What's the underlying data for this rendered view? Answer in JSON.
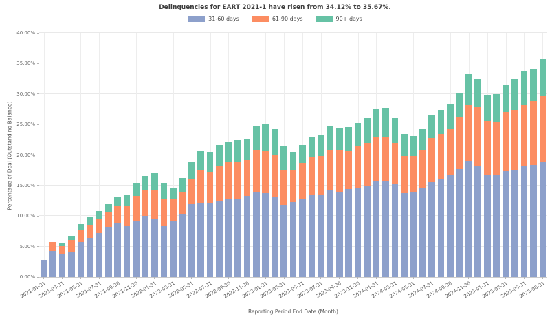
{
  "title": "Delinquencies for EART 2021-1 have risen from 34.12% to 35.67%.",
  "chart_data": {
    "type": "bar",
    "stacked": true,
    "title": "Delinquencies for EART 2021-1 have risen from 34.12% to 35.67%.",
    "xlabel": "Reporting Period End Date (Month)",
    "ylabel": "Percentage of Deal (Outstanding Balance)",
    "ylim": [
      0,
      40
    ],
    "grid": true,
    "legend_position": "top-center",
    "yticks": [
      "0.00%",
      "5.00%",
      "10.00%",
      "15.00%",
      "20.00%",
      "25.00%",
      "30.00%",
      "35.00%",
      "40.00%"
    ],
    "xtick_every": 2,
    "categories": [
      "2021-01-31",
      "2021-02-28",
      "2021-03-31",
      "2021-04-30",
      "2021-05-31",
      "2021-06-30",
      "2021-07-31",
      "2021-08-31",
      "2021-09-30",
      "2021-10-31",
      "2021-11-30",
      "2021-12-31",
      "2022-01-31",
      "2022-02-28",
      "2022-03-31",
      "2022-04-30",
      "2022-05-31",
      "2022-06-30",
      "2022-07-31",
      "2022-08-31",
      "2022-09-30",
      "2022-10-31",
      "2022-11-30",
      "2022-12-31",
      "2023-01-31",
      "2023-02-28",
      "2023-03-31",
      "2023-04-30",
      "2023-05-31",
      "2023-06-30",
      "2023-07-31",
      "2023-08-31",
      "2023-09-30",
      "2023-10-31",
      "2023-11-30",
      "2023-12-31",
      "2024-01-31",
      "2024-02-29",
      "2024-03-31",
      "2024-04-30",
      "2024-05-31",
      "2024-06-30",
      "2024-07-31",
      "2024-08-31",
      "2024-09-30",
      "2024-10-31",
      "2024-11-30",
      "2024-12-31",
      "2025-01-31",
      "2025-02-28",
      "2025-03-31",
      "2025-04-30",
      "2025-05-31",
      "2025-06-30",
      "2025-08-31"
    ],
    "series": [
      {
        "name": "31-60 days",
        "color": "#8da0cb",
        "values": [
          2.8,
          4.3,
          3.8,
          4.1,
          5.8,
          6.4,
          7.2,
          8.2,
          8.9,
          8.3,
          9.1,
          10.0,
          9.5,
          8.3,
          9.1,
          10.4,
          11.9,
          12.2,
          12.2,
          12.5,
          12.7,
          12.9,
          13.3,
          14.0,
          13.8,
          13.1,
          11.8,
          12.3,
          12.7,
          13.5,
          13.4,
          14.2,
          14.0,
          14.4,
          14.6,
          15.0,
          15.7,
          15.7,
          15.2,
          13.8,
          13.9,
          14.5,
          15.5,
          16.0,
          16.8,
          17.7,
          19.0,
          18.1,
          16.8,
          16.8,
          17.3,
          17.6,
          18.3,
          18.4,
          18.9
        ]
      },
      {
        "name": "61-90 days",
        "color": "#fc8d62",
        "values": [
          0.0,
          1.5,
          1.3,
          2.0,
          2.0,
          2.2,
          2.4,
          2.4,
          2.7,
          3.4,
          4.2,
          4.3,
          4.8,
          4.6,
          3.8,
          3.5,
          4.2,
          5.4,
          5.0,
          5.7,
          6.1,
          5.9,
          5.9,
          6.9,
          6.9,
          6.9,
          5.8,
          5.2,
          6.0,
          6.1,
          6.4,
          6.6,
          6.8,
          6.3,
          6.9,
          7.0,
          7.2,
          7.3,
          6.8,
          6.0,
          5.9,
          6.3,
          7.3,
          7.4,
          7.5,
          8.6,
          9.2,
          9.8,
          8.8,
          8.7,
          9.7,
          9.8,
          9.9,
          10.4,
          10.8
        ]
      },
      {
        "name": "90+ days",
        "color": "#66c2a5",
        "values": [
          0.0,
          0.0,
          0.5,
          0.7,
          0.9,
          1.3,
          1.2,
          1.4,
          1.5,
          1.7,
          2.1,
          2.3,
          2.7,
          2.5,
          1.7,
          2.3,
          2.8,
          3.0,
          3.3,
          3.4,
          3.3,
          3.6,
          3.4,
          3.8,
          4.4,
          4.3,
          3.8,
          3.0,
          2.9,
          3.4,
          3.4,
          3.9,
          3.6,
          3.9,
          3.7,
          4.1,
          4.6,
          4.7,
          4.1,
          3.6,
          3.3,
          3.4,
          3.8,
          4.0,
          4.1,
          3.8,
          5.0,
          4.5,
          4.3,
          4.5,
          4.4,
          5.0,
          5.6,
          5.32,
          5.97
        ]
      }
    ]
  }
}
